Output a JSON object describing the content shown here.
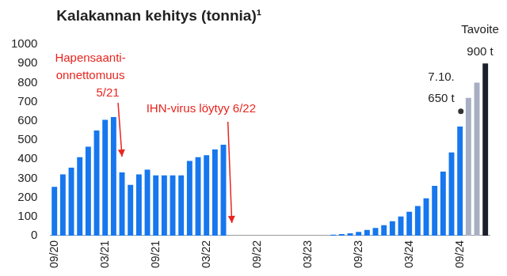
{
  "chart_data": {
    "type": "bar",
    "title": "Kalakannan kehitys (tonnia)¹",
    "categories": [
      "09/20",
      null,
      null,
      null,
      null,
      null,
      "03/21",
      null,
      null,
      null,
      null,
      null,
      "09/21",
      null,
      null,
      null,
      null,
      null,
      "03/22",
      null,
      null,
      null,
      null,
      null,
      "09/22",
      null,
      null,
      null,
      null,
      null,
      "03/23",
      null,
      null,
      null,
      null,
      null,
      "09/23",
      null,
      null,
      null,
      null,
      null,
      "03/24",
      null,
      null,
      null,
      null,
      null,
      "09/24",
      null,
      null,
      null
    ],
    "values": [
      255,
      320,
      355,
      410,
      465,
      550,
      605,
      620,
      330,
      265,
      320,
      345,
      315,
      315,
      315,
      315,
      390,
      410,
      420,
      450,
      475,
      0,
      0,
      0,
      0,
      0,
      0,
      0,
      0,
      0,
      0,
      0,
      0,
      5,
      8,
      12,
      20,
      30,
      40,
      55,
      75,
      100,
      125,
      155,
      195,
      260,
      335,
      435,
      570,
      720,
      800,
      900
    ],
    "colors": [
      "#1677ee",
      "#1677ee",
      "#1677ee",
      "#1677ee",
      "#1677ee",
      "#1677ee",
      "#1677ee",
      "#1677ee",
      "#1677ee",
      "#1677ee",
      "#1677ee",
      "#1677ee",
      "#1677ee",
      "#1677ee",
      "#1677ee",
      "#1677ee",
      "#1677ee",
      "#1677ee",
      "#1677ee",
      "#1677ee",
      "#1677ee",
      "#1677ee",
      "#1677ee",
      "#1677ee",
      "#1677ee",
      "#1677ee",
      "#1677ee",
      "#1677ee",
      "#1677ee",
      "#1677ee",
      "#1677ee",
      "#1677ee",
      "#1677ee",
      "#1677ee",
      "#1677ee",
      "#1677ee",
      "#1677ee",
      "#1677ee",
      "#1677ee",
      "#1677ee",
      "#1677ee",
      "#1677ee",
      "#1677ee",
      "#1677ee",
      "#1677ee",
      "#1677ee",
      "#1677ee",
      "#1677ee",
      "#1677ee",
      "#a8afc3",
      "#a8afc3",
      "#1b1f2b"
    ],
    "ylim": [
      0,
      1000
    ],
    "yticks": [
      0,
      100,
      200,
      300,
      400,
      500,
      600,
      700,
      800,
      900,
      1000
    ],
    "grid": false,
    "annotations": [
      {
        "text": [
          "Hapensaanti-",
          "onnettomuus",
          "5/21"
        ],
        "color": "#e8251f"
      },
      {
        "text": [
          "IHN-virus löytyy 6/22"
        ],
        "color": "#e8251f"
      },
      {
        "text": [
          "7.10.",
          "650 t"
        ],
        "value": 650
      },
      {
        "text": [
          "Tavoite",
          "900 t"
        ],
        "value": 900
      }
    ]
  }
}
